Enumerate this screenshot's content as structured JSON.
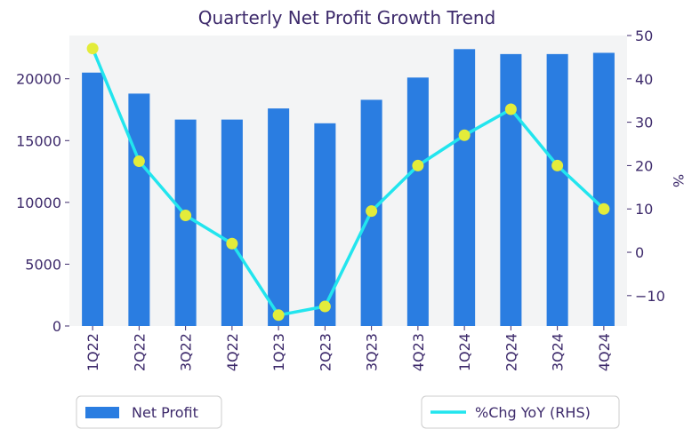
{
  "chart_data": {
    "type": "bar",
    "title": "Quarterly Net Profit Growth Trend",
    "categories": [
      "1Q22",
      "2Q22",
      "3Q22",
      "4Q22",
      "1Q23",
      "2Q23",
      "3Q23",
      "4Q23",
      "1Q24",
      "2Q24",
      "3Q24",
      "4Q24"
    ],
    "series": [
      {
        "name": "Net Profit",
        "type": "bar",
        "axis": "left",
        "color": "#2a7de1",
        "values": [
          20500,
          18800,
          16700,
          16700,
          17600,
          16400,
          18300,
          20100,
          22400,
          22000,
          22000,
          22100
        ]
      },
      {
        "name": "%Chg YoY (RHS)",
        "type": "line",
        "axis": "right",
        "color": "#22e5ee",
        "marker_color": "#e3ec3a",
        "values": [
          47,
          21,
          8.5,
          2,
          -14.5,
          -12.5,
          9.5,
          20,
          27,
          33,
          20,
          10
        ]
      }
    ],
    "y_left": {
      "ylim": [
        0,
        23500
      ],
      "ticks": [
        "0",
        "5000",
        "10000",
        "15000",
        "20000"
      ],
      "tick_values": [
        0,
        5000,
        10000,
        15000,
        20000
      ]
    },
    "y_right": {
      "label": "%",
      "ylim": [
        -17,
        50
      ],
      "ticks": [
        "−10",
        "0",
        "10",
        "20",
        "30",
        "40",
        "50"
      ],
      "tick_values": [
        -10,
        0,
        10,
        20,
        30,
        40,
        50
      ]
    },
    "plot_background": "#f3f4f5",
    "grid": false,
    "legend_placement": "bottom"
  }
}
